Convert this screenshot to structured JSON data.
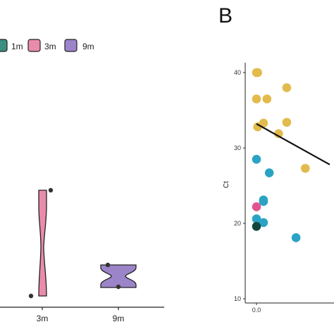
{
  "chart_data": [
    {
      "type": "violin",
      "panel": "",
      "legend": [
        {
          "label": "1m",
          "color": "#3a8f80"
        },
        {
          "label": "3m",
          "color": "#e98bac"
        },
        {
          "label": "9m",
          "color": "#9c84c9"
        }
      ],
      "categories": [
        "3m",
        "9m"
      ],
      "xlabel": "",
      "ylabel": ""
    },
    {
      "type": "scatter",
      "panel": "B",
      "ylabel": "Ct",
      "ylim": [
        10,
        42
      ],
      "yticks": [
        "10",
        "20",
        "30",
        "40"
      ],
      "xticks": [
        "0.0"
      ],
      "xlim": [
        0,
        1.3
      ],
      "grid": false,
      "colors": {
        "gold": "#e3bb4c",
        "blue": "#2ba3c4",
        "pink": "#e0558d",
        "dark": "#13473d"
      },
      "points": [
        {
          "x": 0.0,
          "y": 40.0,
          "color": "gold"
        },
        {
          "x": 0.01,
          "y": 40.0,
          "color": "gold"
        },
        {
          "x": 0.0,
          "y": 36.5,
          "color": "gold"
        },
        {
          "x": 0.09,
          "y": 36.5,
          "color": "gold"
        },
        {
          "x": 0.26,
          "y": 38.0,
          "color": "gold"
        },
        {
          "x": 0.06,
          "y": 33.3,
          "color": "gold"
        },
        {
          "x": 0.01,
          "y": 32.8,
          "color": "gold"
        },
        {
          "x": 0.26,
          "y": 33.4,
          "color": "gold"
        },
        {
          "x": 0.19,
          "y": 31.9,
          "color": "gold"
        },
        {
          "x": 0.42,
          "y": 27.3,
          "color": "gold"
        },
        {
          "x": 0.0,
          "y": 28.5,
          "color": "blue"
        },
        {
          "x": 0.11,
          "y": 26.7,
          "color": "blue"
        },
        {
          "x": 0.06,
          "y": 23.1,
          "color": "blue"
        },
        {
          "x": 0.06,
          "y": 22.9,
          "color": "blue"
        },
        {
          "x": 0.0,
          "y": 20.6,
          "color": "blue"
        },
        {
          "x": 0.06,
          "y": 20.1,
          "color": "blue"
        },
        {
          "x": 0.34,
          "y": 18.1,
          "color": "blue"
        },
        {
          "x": 0.0,
          "y": 22.2,
          "color": "pink"
        },
        {
          "x": 0.0,
          "y": 19.6,
          "color": "dark"
        }
      ],
      "fit_line": {
        "x": [
          0.0,
          0.63
        ],
        "y": [
          33.2,
          27.8
        ]
      }
    }
  ]
}
